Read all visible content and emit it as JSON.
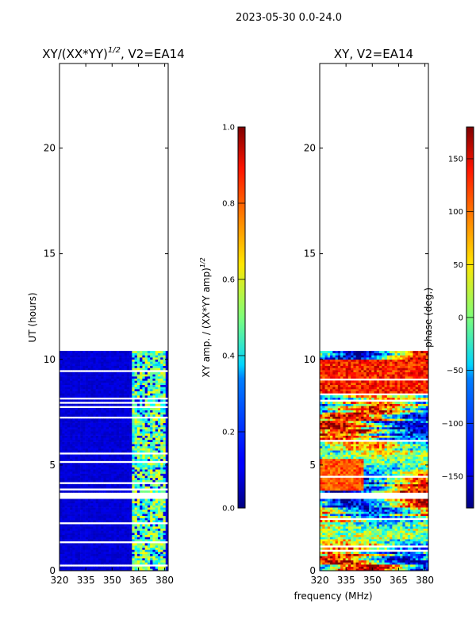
{
  "figure": {
    "suptitle": "2023-05-30 0.0-24.0",
    "xlabel": "frequency (MHz)"
  },
  "chart_data": [
    {
      "type": "heatmap",
      "title": "XY/(XX*YY)",
      "title_sup": "1/2",
      "title_suffix": ", V2=EA14",
      "xlabel": "",
      "ylabel": "UT (hours)",
      "xlim": [
        320,
        382
      ],
      "ylim": [
        0,
        24
      ],
      "xticks": [
        320,
        335,
        350,
        365,
        380
      ],
      "yticks": [
        0,
        5,
        10,
        15,
        20
      ],
      "data_extent_hours": [
        0,
        10.4
      ],
      "colormap": "jet",
      "colorbar": {
        "label": "XY amp. / (XX*YY amp)",
        "label_sup": "1/2",
        "range": [
          0.0,
          1.0
        ],
        "ticks": [
          "0.0",
          "0.2",
          "0.4",
          "0.6",
          "0.8",
          "1.0"
        ]
      }
    },
    {
      "type": "heatmap",
      "title": "XY, V2=EA14",
      "xlabel": "frequency (MHz)",
      "ylabel": "",
      "xlim": [
        320,
        382
      ],
      "ylim": [
        0,
        24
      ],
      "xticks": [
        320,
        335,
        350,
        365,
        380
      ],
      "yticks": [
        0,
        5,
        10,
        15,
        20
      ],
      "data_extent_hours": [
        0,
        10.4
      ],
      "colormap": "jet",
      "colorbar": {
        "label": "phase (deg.)",
        "range": [
          -180,
          180
        ],
        "ticks": [
          "−150",
          "−100",
          "−50",
          "0",
          "50",
          "100",
          "150"
        ]
      }
    }
  ]
}
